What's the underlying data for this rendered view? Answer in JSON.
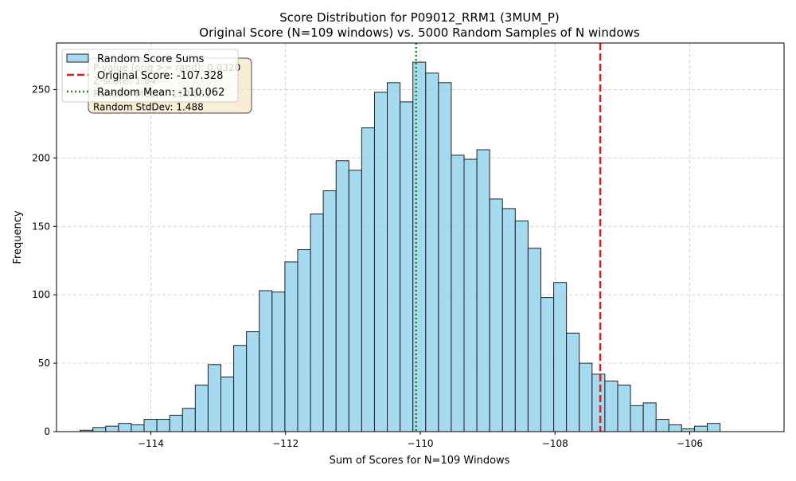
{
  "chart_data": {
    "type": "histogram",
    "title_line1": "Score Distribution for P09012_RRM1 (3MUM_P)",
    "title_line2": "Original Score (N=109 windows) vs. 5000 Random Samples of N windows",
    "xlabel": "Sum of Scores for N=109 Windows",
    "ylabel": "Frequency",
    "xlim": [
      -115.4,
      -104.6
    ],
    "ylim": [
      0,
      284
    ],
    "x_ticks": [
      -114,
      -112,
      -110,
      -108,
      -106
    ],
    "y_ticks": [
      0,
      50,
      100,
      150,
      200,
      250
    ],
    "grid": true,
    "bin_start": -115.05,
    "bin_width": 0.19,
    "counts": [
      1,
      3,
      4,
      6,
      5,
      9,
      9,
      12,
      17,
      34,
      49,
      40,
      63,
      73,
      103,
      102,
      124,
      133,
      159,
      176,
      198,
      191,
      222,
      248,
      255,
      241,
      270,
      262,
      255,
      202,
      199,
      206,
      170,
      163,
      154,
      134,
      98,
      109,
      72,
      50,
      42,
      37,
      34,
      19,
      21,
      9,
      5,
      2,
      4,
      6
    ],
    "original_score": -107.328,
    "random_mean": -110.062,
    "colors": {
      "bar_fill": "#87ceeb",
      "bar_edge": "#222222",
      "original_line": "#e41a1c",
      "mean_line": "#1a8a1a",
      "stats_box_fill": "#f5deb3",
      "stats_box_edge": "#444444"
    },
    "legend": {
      "position": "top-left",
      "entries": [
        {
          "label": "Random Score Sums",
          "style": "patch"
        },
        {
          "label": "Original Score: -107.328",
          "style": "dashed-red"
        },
        {
          "label": "Random Mean: -110.062",
          "style": "dotted-green"
        }
      ]
    },
    "stats_box": {
      "lines": [
        "P-value (orig >= rand): 0.0320",
        "Z-score: 1.84",
        "Random Mean: -110.062",
        "Random StdDev: 1.488"
      ]
    }
  }
}
